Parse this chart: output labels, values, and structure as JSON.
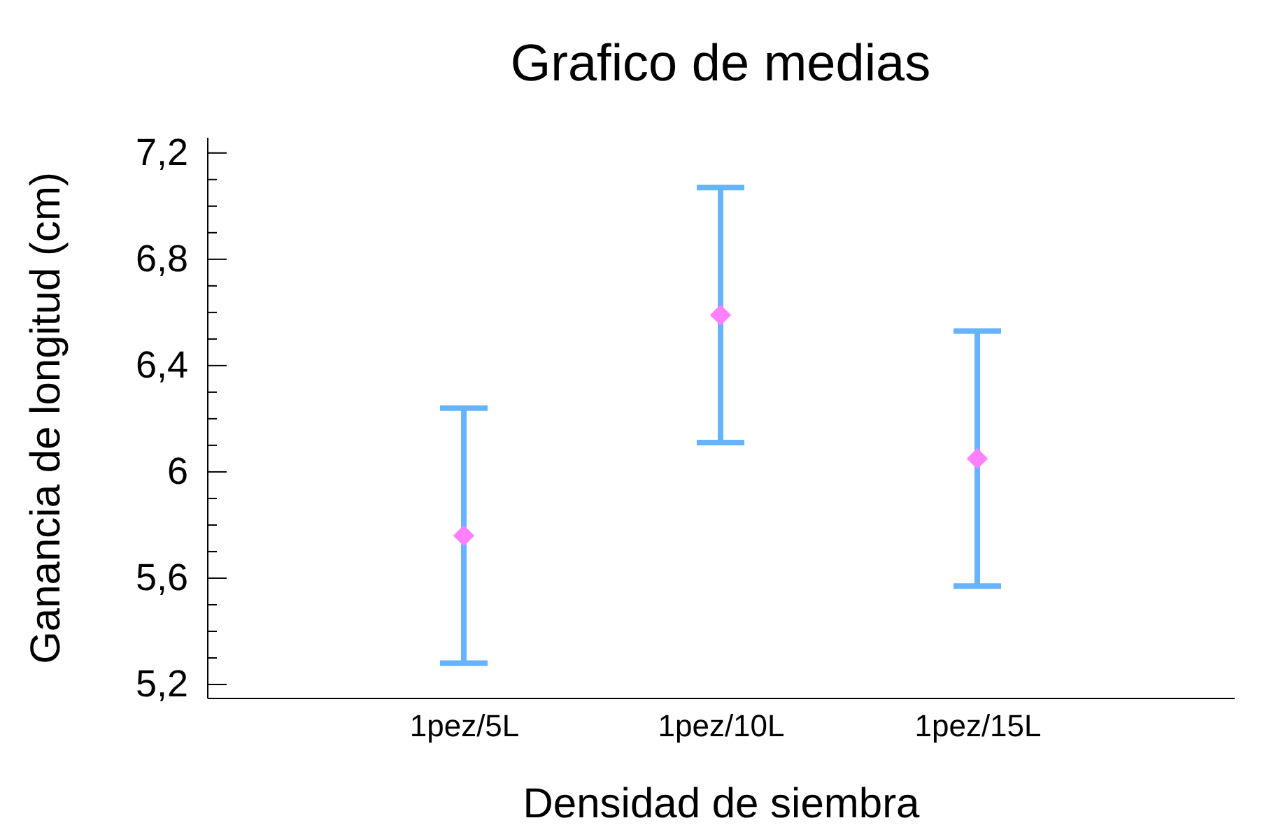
{
  "chart_data": {
    "type": "scatter",
    "title": "Grafico de medias",
    "xlabel": "Densidad de siembra",
    "ylabel": "Ganancia de longitud (cm)",
    "categories": [
      "1pez/5L",
      "1pez/10L",
      "1pez/15L"
    ],
    "series": [
      {
        "color": "#ff80ff",
        "values": [
          5.76,
          6.59,
          6.05
        ],
        "errors": [
          0.48,
          0.48,
          0.48
        ]
      }
    ],
    "ylim": [
      5.15,
      7.26
    ],
    "yticks": [
      {
        "value": 5.2,
        "label": "5,2"
      },
      {
        "value": 5.3,
        "label": null
      },
      {
        "value": 5.4,
        "label": null
      },
      {
        "value": 5.5,
        "label": null
      },
      {
        "value": 5.6,
        "label": "5,6"
      },
      {
        "value": 5.7,
        "label": null
      },
      {
        "value": 5.8,
        "label": null
      },
      {
        "value": 5.9,
        "label": null
      },
      6,
      {
        "value": 6.1,
        "label": null
      },
      {
        "value": 6.2,
        "label": null
      },
      {
        "value": 6.3,
        "label": null
      },
      {
        "value": 6.4,
        "label": "6,4"
      },
      {
        "value": 6.5,
        "label": null
      },
      {
        "value": 6.6,
        "label": null
      },
      {
        "value": 6.7,
        "label": null
      },
      {
        "value": 6.8,
        "label": "6,8"
      },
      {
        "value": 6.9,
        "label": null
      },
      {
        "value": 7.0,
        "label": null
      },
      {
        "value": 7.1,
        "label": null
      },
      {
        "value": 7.2,
        "label": "7,2"
      }
    ],
    "grid": false,
    "marker": "diamond"
  }
}
